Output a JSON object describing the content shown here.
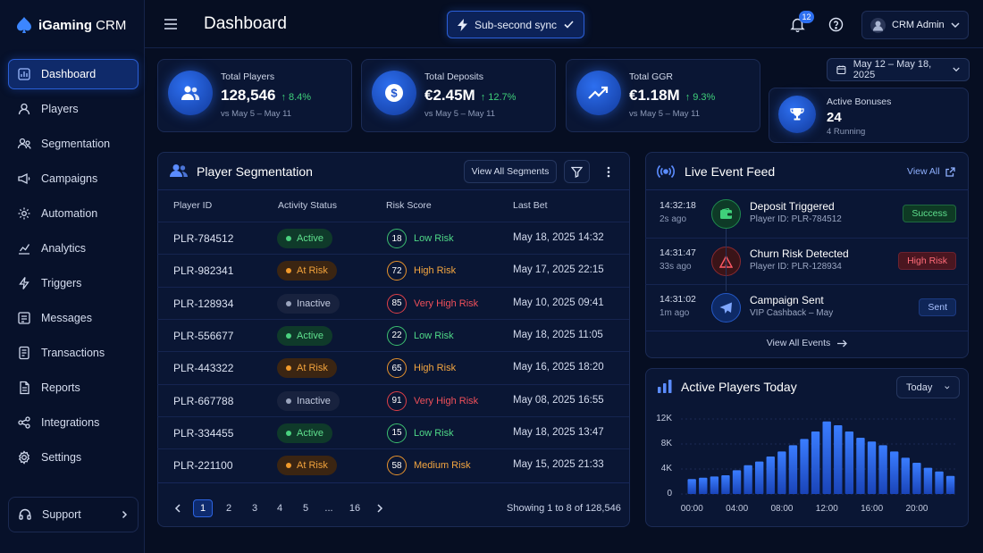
{
  "app": {
    "name_bold": "iGaming",
    "name_rest": " CRM"
  },
  "nav": [
    {
      "label": "Dashboard",
      "icon": "dashboard-icon",
      "active": true
    },
    {
      "label": "Players",
      "icon": "user-icon"
    },
    {
      "label": "Segmentation",
      "icon": "segmentation-icon"
    },
    {
      "label": "Campaigns",
      "icon": "campaigns-icon"
    },
    {
      "label": "Automation",
      "icon": "automation-icon"
    },
    {
      "label": "Analytics",
      "icon": "analytics-icon"
    },
    {
      "label": "Triggers",
      "icon": "lightning-icon"
    },
    {
      "label": "Messages",
      "icon": "messages-icon"
    },
    {
      "label": "Transactions",
      "icon": "transactions-icon"
    },
    {
      "label": "Reports",
      "icon": "reports-icon"
    },
    {
      "label": "Integrations",
      "icon": "integrations-icon"
    },
    {
      "label": "Settings",
      "icon": "gear-icon"
    }
  ],
  "support": {
    "label": "Support"
  },
  "header": {
    "title": "Dashboard",
    "sync_label": "Sub-second sync",
    "notif_count": "12",
    "user": "CRM Admin"
  },
  "date_range": "May 12 – May 18, 2025",
  "stats": [
    {
      "label": "Total Players",
      "value": "128,546",
      "change": "↑ 8.4%",
      "sub": "vs May 5 – May 11",
      "icon": "users-icon"
    },
    {
      "label": "Total Deposits",
      "value": "€2.45M",
      "change": "↑ 12.7%",
      "sub": "vs May 5 – May 11",
      "icon": "dollar-icon"
    },
    {
      "label": "Total GGR",
      "value": "€1.18M",
      "change": "↑ 9.3%",
      "sub": "vs May 5 – May 11",
      "icon": "trend-up-icon"
    }
  ],
  "bonuses": {
    "label": "Active Bonuses",
    "value": "24",
    "sub": "4 Running"
  },
  "segmentation": {
    "title": "Player Segmentation",
    "view_all": "View All Segments",
    "columns": [
      "Player ID",
      "Activity Status",
      "Risk Score",
      "Last Bet"
    ],
    "rows": [
      {
        "id": "PLR-784512",
        "status": "Active",
        "score": "18",
        "risk": "Low Risk",
        "last": "May 18, 2025 14:32"
      },
      {
        "id": "PLR-982341",
        "status": "At Risk",
        "score": "72",
        "risk": "High Risk",
        "last": "May 17, 2025 22:15"
      },
      {
        "id": "PLR-128934",
        "status": "Inactive",
        "score": "85",
        "risk": "Very High Risk",
        "last": "May 10, 2025 09:41"
      },
      {
        "id": "PLR-556677",
        "status": "Active",
        "score": "22",
        "risk": "Low Risk",
        "last": "May 18, 2025 11:05"
      },
      {
        "id": "PLR-443322",
        "status": "At Risk",
        "score": "65",
        "risk": "High Risk",
        "last": "May 16, 2025 18:20"
      },
      {
        "id": "PLR-667788",
        "status": "Inactive",
        "score": "91",
        "risk": "Very High Risk",
        "last": "May 08, 2025 16:55"
      },
      {
        "id": "PLR-334455",
        "status": "Active",
        "score": "15",
        "risk": "Low Risk",
        "last": "May 18, 2025 13:47"
      },
      {
        "id": "PLR-221100",
        "status": "At Risk",
        "score": "58",
        "risk": "Medium Risk",
        "last": "May 15, 2025 21:33"
      }
    ],
    "pages": [
      "1",
      "2",
      "3",
      "4",
      "5",
      "...",
      "16"
    ],
    "showing": "Showing 1 to 8 of 128,546"
  },
  "feed": {
    "title": "Live Event Feed",
    "view_all": "View All",
    "events": [
      {
        "time": "14:32:18",
        "ago": "2s ago",
        "title": "Deposit Triggered",
        "sub": "Player ID: PLR-784512",
        "badge": "Success",
        "kind": "success"
      },
      {
        "time": "14:31:47",
        "ago": "33s ago",
        "title": "Churn Risk Detected",
        "sub": "Player ID: PLR-128934",
        "badge": "High Risk",
        "kind": "danger"
      },
      {
        "time": "14:31:02",
        "ago": "1m ago",
        "title": "Campaign Sent",
        "sub": "VIP Cashback – May",
        "badge": "Sent",
        "kind": "info"
      }
    ],
    "view_all_events": "View All Events"
  },
  "active_players": {
    "title": "Active Players Today",
    "period": "Today"
  },
  "chart_data": {
    "type": "bar",
    "title": "Active Players Today",
    "xlabel": "",
    "ylabel": "",
    "ylim": [
      0,
      12000
    ],
    "yticks": [
      "0",
      "4K",
      "8K",
      "12K"
    ],
    "xticks": [
      "00:00",
      "04:00",
      "08:00",
      "12:00",
      "16:00",
      "20:00"
    ],
    "categories": [
      "00:00",
      "01:00",
      "02:00",
      "03:00",
      "04:00",
      "05:00",
      "06:00",
      "07:00",
      "08:00",
      "09:00",
      "10:00",
      "11:00",
      "12:00",
      "13:00",
      "14:00",
      "15:00",
      "16:00",
      "17:00",
      "18:00",
      "19:00",
      "20:00",
      "21:00",
      "22:00",
      "23:00"
    ],
    "values": [
      2400,
      2600,
      2800,
      3000,
      3800,
      4600,
      5200,
      6000,
      6800,
      7800,
      8800,
      10000,
      11600,
      11000,
      10000,
      9000,
      8400,
      7800,
      6800,
      5800,
      5000,
      4200,
      3600,
      2900
    ],
    "color": "#2d6ff0"
  },
  "colors": {
    "accent": "#2d6ff0",
    "success": "#3fd07a",
    "warning": "#f29a2a",
    "danger": "#f0505a"
  }
}
